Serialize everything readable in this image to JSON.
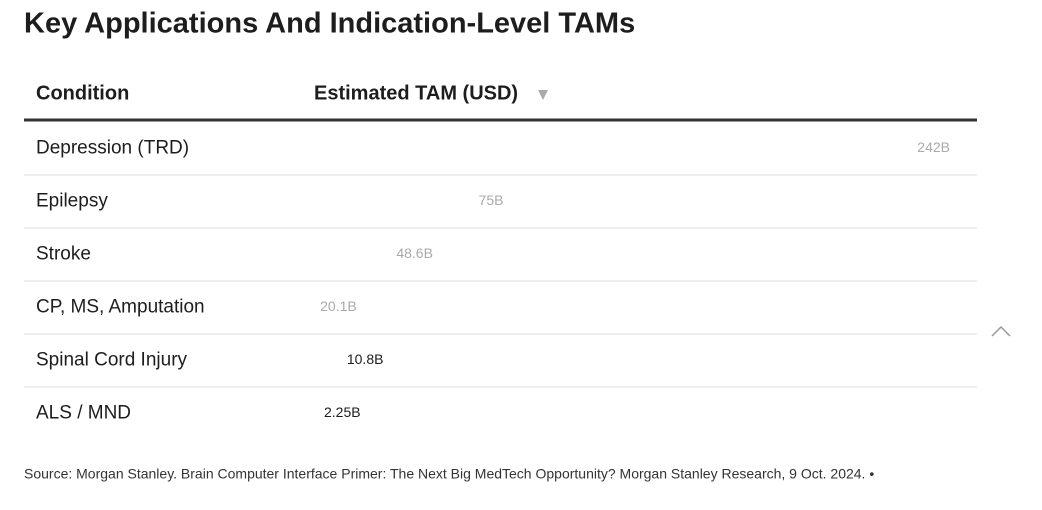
{
  "chart_data": {
    "type": "bar",
    "title": "Key Applications And Indication-Level TAMs",
    "column_headers": [
      "Condition",
      "Estimated TAM (USD)"
    ],
    "categories": [
      "Depression (TRD)",
      "Epilepsy",
      "Stroke",
      "CP, MS, Amputation",
      "Spinal Cord Injury",
      "ALS / MND"
    ],
    "values": [
      242,
      75,
      48.6,
      20.1,
      10.8,
      2.25
    ],
    "value_labels": [
      "242B",
      "75B",
      "48.6B",
      "20.1B",
      "10.8B",
      "2.25B"
    ],
    "color": "#ffffff",
    "source": "Source: Morgan Stanley. Brain Computer Interface Primer: The Next Big MedTech Opportunity? Morgan Stanley Research, 9 Oct. 2024. •"
  }
}
